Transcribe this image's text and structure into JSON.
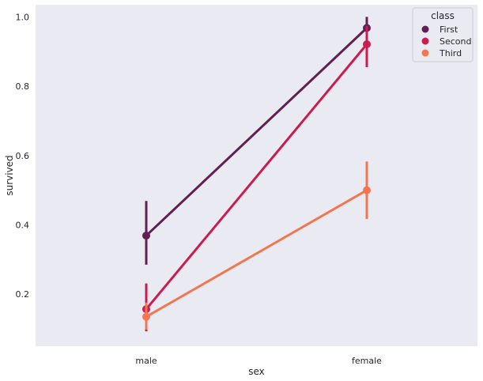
{
  "chart_data": {
    "type": "line",
    "x_categories": [
      "male",
      "female"
    ],
    "xlabel": "sex",
    "ylabel": "survived",
    "ylim": [
      0.05,
      1.035
    ],
    "yticks": [
      0.2,
      0.4,
      0.6,
      0.8,
      1.0
    ],
    "ytick_labels": [
      "0.2",
      "0.4",
      "0.6",
      "0.8",
      "1.0"
    ],
    "grid": false,
    "background": "#eaeaf2",
    "legend": {
      "title": "class",
      "placement": "top-right"
    },
    "series": [
      {
        "name": "First",
        "color": "#611f53",
        "values": [
          0.369,
          0.968
        ],
        "ci_low": [
          0.285,
          0.925
        ],
        "ci_high": [
          0.469,
          1.0
        ]
      },
      {
        "name": "Second",
        "color": "#cb1b4f",
        "values": [
          0.157,
          0.921
        ],
        "ci_low": [
          0.093,
          0.855
        ],
        "ci_high": [
          0.231,
          0.974
        ]
      },
      {
        "name": "Third",
        "color": "#f37651",
        "values": [
          0.135,
          0.5
        ],
        "ci_low": [
          0.098,
          0.417
        ],
        "ci_high": [
          0.176,
          0.583
        ]
      }
    ]
  }
}
